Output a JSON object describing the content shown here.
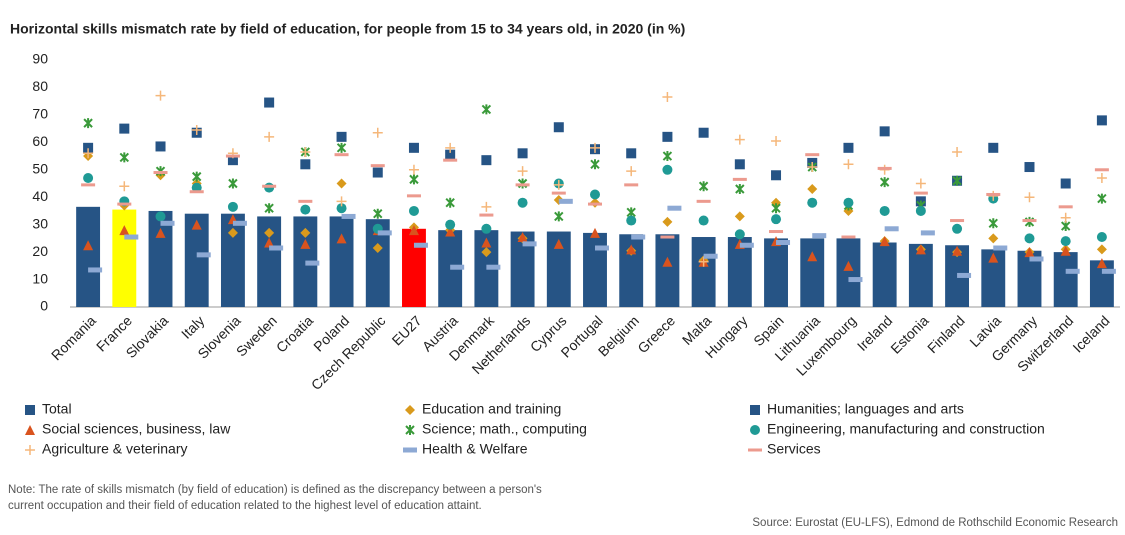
{
  "chart_data": {
    "type": "bar_marker",
    "title": "Horizontal skills mismatch rate by field of education, for people from 15 to 34 years old, in 2020  (in %)",
    "note": "Note: The rate of skills mismatch (by field of education) is defined as the discrepancy between a person's current occupation and their field of education related to the highest level of education attaint.",
    "source": "Source: Eurostat (EU-LFS), Edmond de Rothschild Economic Research",
    "categories": [
      "Romania",
      "France",
      "Slovakia",
      "Italy",
      "Slovenia",
      "Sweden",
      "Croatia",
      "Poland",
      "Czech Republic",
      "EU27",
      "Austria",
      "Denmark",
      "Netherlands",
      "Cyprus",
      "Portugal",
      "Belgium",
      "Greece",
      "Malta",
      "Hungary",
      "Spain",
      "Lithuania",
      "Luxembourg",
      "Ireland",
      "Estonia",
      "Finland",
      "Latvia",
      "Germany",
      "Switzerland",
      "Iceland"
    ],
    "ylim": [
      0,
      90
    ],
    "yticks": [
      0,
      10,
      20,
      30,
      40,
      50,
      60,
      70,
      80,
      90
    ],
    "grid": false,
    "series": [
      {
        "name": "Total",
        "marker": "bar",
        "color": "#265485",
        "point_colors": [
          "#265485",
          "#ffff00",
          "#265485",
          "#265485",
          "#265485",
          "#265485",
          "#265485",
          "#265485",
          "#265485",
          "#ff0000",
          "#265485",
          "#265485",
          "#265485",
          "#265485",
          "#265485",
          "#265485",
          "#265485",
          "#265485",
          "#265485",
          "#265485",
          "#265485",
          "#265485",
          "#265485",
          "#265485",
          "#265485",
          "#265485",
          "#265485",
          "#265485",
          "#265485"
        ],
        "values": [
          36.5,
          35.5,
          35,
          34,
          34,
          33,
          33,
          33,
          32,
          28.5,
          28,
          28,
          27.5,
          27.5,
          27,
          26.5,
          26.5,
          25.5,
          25.5,
          25,
          25,
          25,
          23.5,
          23,
          22.5,
          21,
          20.5,
          20,
          17
        ]
      },
      {
        "name": "Education and training",
        "marker": "diamond",
        "color": "#d99a1c",
        "values": [
          55,
          37,
          48,
          45,
          27,
          27,
          27,
          45,
          21.5,
          29,
          28,
          20,
          25,
          39,
          38,
          20.5,
          31,
          17,
          33,
          38,
          43,
          35,
          24,
          21,
          20,
          25,
          20,
          21,
          21
        ]
      },
      {
        "name": "Humanities; languages and arts",
        "marker": "square",
        "color": "#265485",
        "values": [
          58,
          65,
          58.5,
          63.5,
          53.5,
          74.5,
          52,
          62,
          49,
          58,
          55.5,
          53.5,
          56,
          65.5,
          57.5,
          56,
          62,
          63.5,
          52,
          48,
          52.5,
          58,
          64,
          38.5,
          46,
          58,
          51,
          45,
          68
        ]
      },
      {
        "name": "Social sciences, business, law",
        "marker": "triangle",
        "color": "#d9531e",
        "values": [
          22.5,
          28,
          27,
          30,
          32,
          23.5,
          23,
          25,
          28,
          28,
          27.5,
          23.5,
          25.5,
          23,
          27,
          21,
          16.5,
          16.5,
          23,
          24,
          18.5,
          15,
          24,
          21,
          20.5,
          18,
          20,
          20.5,
          16
        ]
      },
      {
        "name": "Science; math., computing",
        "marker": "x",
        "color": "#3a9a3a",
        "values": [
          67,
          54.5,
          49.5,
          47.5,
          45,
          36,
          56.5,
          58,
          34,
          46.5,
          38,
          72,
          45,
          33,
          52,
          34.5,
          55,
          44,
          43,
          36,
          51,
          37,
          45.5,
          37,
          46,
          30.5,
          31,
          29.5,
          39.5
        ]
      },
      {
        "name": "Engineering, manufacturing and construction",
        "marker": "circle",
        "color": "#1f9a95",
        "values": [
          47,
          38.5,
          33,
          43.5,
          36.5,
          43.5,
          35.5,
          36,
          28.5,
          35,
          30,
          28.5,
          38,
          45,
          41,
          31.5,
          50,
          31.5,
          26.5,
          32,
          38,
          38,
          35,
          35,
          28.5,
          39.5,
          25,
          24,
          25.5
        ]
      },
      {
        "name": "Agriculture & veterinary",
        "marker": "plus",
        "color": "#f5b77a",
        "values": [
          56,
          44,
          77,
          64.5,
          56,
          62,
          56.5,
          38.5,
          63.5,
          50,
          58,
          36.5,
          49.5,
          44.5,
          58,
          49.5,
          76.5,
          16.5,
          61,
          60.5,
          51,
          52,
          50,
          45,
          56.5,
          40.5,
          40,
          32.5,
          47
        ]
      },
      {
        "name": "Health & Welfare",
        "marker": "dash",
        "color": "#8da9d4",
        "values": [
          13.5,
          25.5,
          30.5,
          19,
          30.5,
          21.5,
          16,
          33,
          27,
          22.5,
          14.5,
          14.5,
          23,
          38.5,
          21.5,
          25.5,
          36,
          18.5,
          22.5,
          23.5,
          26,
          10,
          28.5,
          27,
          11.5,
          21.5,
          17.5,
          13,
          13
        ]
      },
      {
        "name": "Services",
        "marker": "thin-dash",
        "color": "#ec9a8e",
        "values": [
          44.5,
          37.5,
          49,
          42,
          55,
          44,
          38.5,
          55.5,
          51.5,
          40.5,
          53.5,
          33.5,
          44.5,
          41.5,
          37.5,
          44.5,
          25.5,
          38.5,
          46.5,
          27.5,
          55.5,
          25.5,
          50.5,
          41.5,
          31.5,
          41,
          31.5,
          36.5,
          50
        ]
      }
    ]
  }
}
